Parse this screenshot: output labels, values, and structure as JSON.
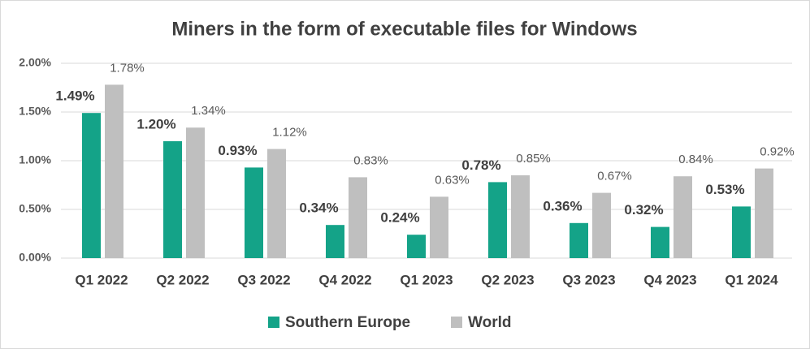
{
  "chart_data": {
    "type": "bar",
    "title": "Miners in the form of executable files for Windows",
    "categories": [
      "Q1 2022",
      "Q2 2022",
      "Q3 2022",
      "Q4 2022",
      "Q1 2023",
      "Q2 2023",
      "Q3 2023",
      "Q4 2023",
      "Q1 2024"
    ],
    "series": [
      {
        "name": "Southern Europe",
        "color": "#14a388",
        "values": [
          1.49,
          1.2,
          0.93,
          0.34,
          0.24,
          0.78,
          0.36,
          0.32,
          0.53
        ],
        "value_labels": [
          "1.49%",
          "1.20%",
          "0.93%",
          "0.34%",
          "0.24%",
          "0.78%",
          "0.36%",
          "0.32%",
          "0.53%"
        ]
      },
      {
        "name": "World",
        "color": "#bfbfbf",
        "values": [
          1.78,
          1.34,
          1.12,
          0.83,
          0.63,
          0.85,
          0.67,
          0.84,
          0.92
        ],
        "value_labels": [
          "1.78%",
          "1.34%",
          "1.12%",
          "0.83%",
          "0.63%",
          "0.85%",
          "0.67%",
          "0.84%",
          "0.92%"
        ]
      }
    ],
    "ylim": [
      0,
      2
    ],
    "yticks": [
      {
        "value": 0,
        "label": "0.00%"
      },
      {
        "value": 0.5,
        "label": "0.50%"
      },
      {
        "value": 1,
        "label": "1.00%"
      },
      {
        "value": 1.5,
        "label": "1.50%"
      },
      {
        "value": 2,
        "label": "2.00%"
      }
    ],
    "grid": true,
    "legend": "bottom"
  }
}
